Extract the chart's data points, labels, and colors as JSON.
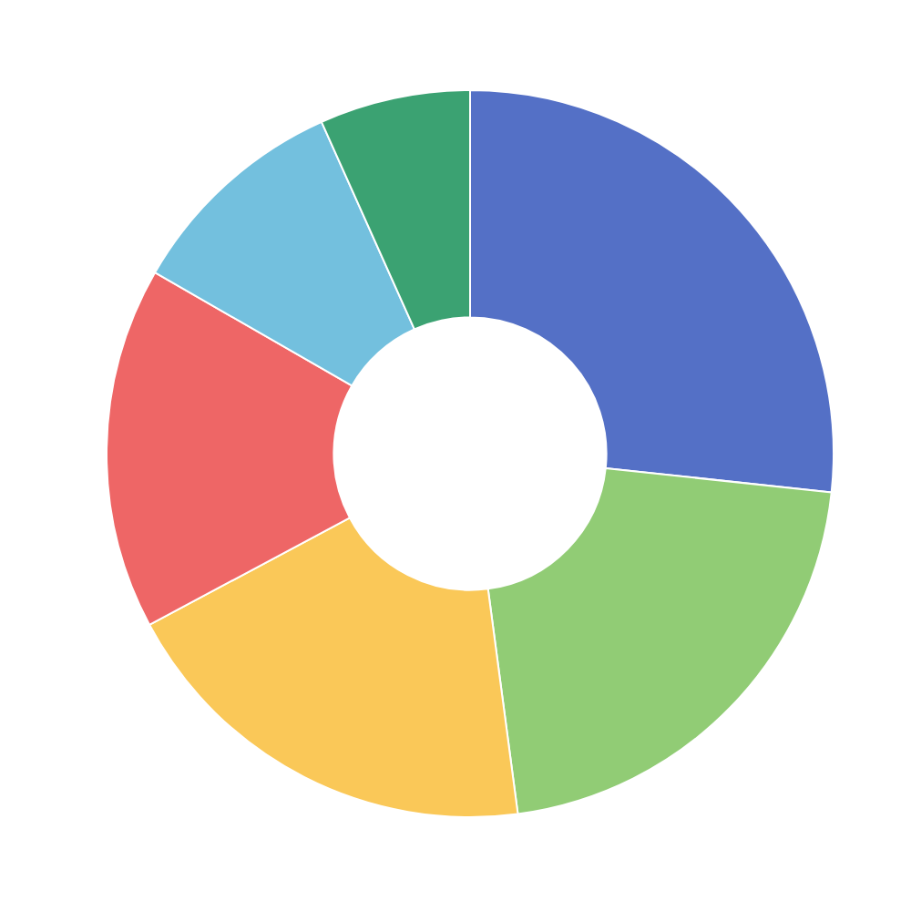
{
  "chart_data": {
    "type": "donut",
    "categories": [
      null,
      null,
      null,
      null,
      null,
      null
    ],
    "values": [
      26.7,
      21.2,
      19.3,
      16.1,
      10,
      6.7
    ],
    "colors": [
      "#5470c6",
      "#91cc75",
      "#fac858",
      "#ee6666",
      "#73c0de",
      "#3ba272"
    ],
    "legend": false
  }
}
